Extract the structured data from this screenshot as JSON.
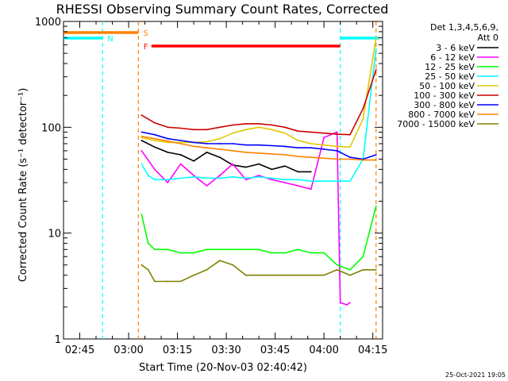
{
  "chart_data": {
    "type": "line",
    "title": "RHESSI Observing Summary Count Rates, Corrected",
    "xlabel": "Start Time (20-Nov-03 02:40:42)",
    "ylabel": "Corrected Count Rate (s⁻¹ detector⁻¹)",
    "y_scale": "log",
    "ylim": [
      1,
      1000
    ],
    "xlim": [
      "02:40",
      "04:18"
    ],
    "x_ticks": [
      "02:45",
      "03:00",
      "03:15",
      "03:30",
      "03:45",
      "04:00",
      "04:15"
    ],
    "y_ticks": [
      "1",
      "10",
      "100",
      "1000"
    ],
    "legend_header": [
      "Det 1,3,4,5,6,9,",
      "Att 0"
    ],
    "timestamp": "25-Oct-2021 19:05",
    "flags": [
      {
        "label": "S",
        "color": "#ff8000",
        "start": "02:40",
        "end": "03:03"
      },
      {
        "label": "N",
        "color": "#00ffff",
        "start": "02:40",
        "end": "02:52"
      },
      {
        "label": "N",
        "color": "#00ffff",
        "start": "04:05",
        "end": "04:17"
      },
      {
        "label": "F",
        "color": "#ff0000",
        "start": "03:07",
        "end": "04:05"
      }
    ],
    "vlines": [
      {
        "t": "02:52",
        "color": "#00ffff"
      },
      {
        "t": "03:03",
        "color": "#ff8000"
      },
      {
        "t": "04:05",
        "color": "#00ffff"
      },
      {
        "t": "04:16",
        "color": "#ff8000"
      }
    ],
    "series": [
      {
        "name": "3 - 6 keV",
        "color": "#000000",
        "x": [
          "03:04",
          "03:08",
          "03:12",
          "03:16",
          "03:20",
          "03:24",
          "03:28",
          "03:32",
          "03:36",
          "03:40",
          "03:44",
          "03:48",
          "03:52",
          "03:56"
        ],
        "y": [
          75,
          65,
          58,
          55,
          48,
          58,
          52,
          44,
          42,
          45,
          40,
          43,
          38,
          38
        ]
      },
      {
        "name": "6 - 12 keV",
        "color": "#ff00ff",
        "x": [
          "03:04",
          "03:08",
          "03:12",
          "03:16",
          "03:20",
          "03:24",
          "03:28",
          "03:32",
          "03:36",
          "03:40",
          "03:44",
          "03:48",
          "03:52",
          "03:56",
          "04:00",
          "04:04",
          "04:05",
          "04:07",
          "04:08"
        ],
        "y": [
          60,
          40,
          30,
          45,
          35,
          28,
          35,
          45,
          32,
          35,
          32,
          30,
          28,
          26,
          80,
          90,
          2.2,
          2.1,
          2.2
        ]
      },
      {
        "name": "12 - 25 keV",
        "color": "#00ff00",
        "x": [
          "03:04",
          "03:06",
          "03:08",
          "03:12",
          "03:16",
          "03:20",
          "03:24",
          "03:28",
          "03:32",
          "03:36",
          "03:40",
          "03:44",
          "03:48",
          "03:52",
          "03:56",
          "04:00",
          "04:04",
          "04:08",
          "04:12",
          "04:16"
        ],
        "y": [
          15,
          8,
          7,
          7,
          6.5,
          6.5,
          7,
          7,
          7,
          7,
          7,
          6.5,
          6.5,
          7,
          6.5,
          6.5,
          5,
          4.5,
          6,
          18
        ]
      },
      {
        "name": "25 - 50 keV",
        "color": "#00ffff",
        "x": [
          "03:04",
          "03:06",
          "03:08",
          "03:12",
          "03:16",
          "03:20",
          "03:24",
          "03:28",
          "03:32",
          "03:36",
          "03:40",
          "03:44",
          "03:48",
          "03:52",
          "03:56",
          "04:00",
          "04:04",
          "04:08",
          "04:12",
          "04:16"
        ],
        "y": [
          45,
          35,
          32,
          32,
          33,
          34,
          33,
          33,
          34,
          33,
          34,
          33,
          32,
          32,
          31,
          31,
          31,
          31,
          50,
          550
        ]
      },
      {
        "name": "50 - 100 keV",
        "color": "#e0c800",
        "x": [
          "03:04",
          "03:08",
          "03:12",
          "03:16",
          "03:20",
          "03:24",
          "03:28",
          "03:32",
          "03:36",
          "03:40",
          "03:44",
          "03:48",
          "03:52",
          "03:56",
          "04:00",
          "04:04",
          "04:08",
          "04:12",
          "04:16"
        ],
        "y": [
          80,
          75,
          72,
          72,
          72,
          73,
          78,
          88,
          95,
          100,
          95,
          88,
          75,
          70,
          68,
          66,
          65,
          120,
          700
        ]
      },
      {
        "name": "100 - 300 keV",
        "color": "#cc0000",
        "x": [
          "03:04",
          "03:08",
          "03:12",
          "03:16",
          "03:20",
          "03:24",
          "03:28",
          "03:32",
          "03:36",
          "03:40",
          "03:44",
          "03:48",
          "03:52",
          "03:56",
          "04:00",
          "04:04",
          "04:08",
          "04:12",
          "04:16"
        ],
        "y": [
          130,
          110,
          100,
          98,
          95,
          95,
          100,
          105,
          108,
          108,
          105,
          100,
          92,
          90,
          88,
          86,
          85,
          150,
          350
        ]
      },
      {
        "name": "300 - 800 keV",
        "color": "#0000ff",
        "x": [
          "03:04",
          "03:08",
          "03:12",
          "03:16",
          "03:20",
          "03:24",
          "03:28",
          "03:32",
          "03:36",
          "03:40",
          "03:44",
          "03:48",
          "03:52",
          "03:56",
          "04:00",
          "04:04",
          "04:08",
          "04:12",
          "04:16"
        ],
        "y": [
          90,
          85,
          78,
          75,
          72,
          70,
          70,
          70,
          68,
          68,
          67,
          66,
          64,
          64,
          62,
          60,
          52,
          50,
          55
        ]
      },
      {
        "name": "800 - 7000 keV",
        "color": "#ff8000",
        "x": [
          "03:04",
          "03:08",
          "03:12",
          "03:16",
          "03:20",
          "03:24",
          "03:28",
          "03:32",
          "03:36",
          "03:40",
          "03:44",
          "03:48",
          "03:52",
          "03:56",
          "04:00",
          "04:04",
          "04:08",
          "04:12",
          "04:16"
        ],
        "y": [
          82,
          78,
          74,
          70,
          66,
          64,
          62,
          60,
          58,
          57,
          56,
          55,
          53,
          52,
          51,
          50,
          50,
          49,
          49
        ]
      },
      {
        "name": "7000 - 15000 keV",
        "color": "#808000",
        "x": [
          "03:04",
          "03:06",
          "03:08",
          "03:12",
          "03:16",
          "03:20",
          "03:24",
          "03:28",
          "03:32",
          "03:36",
          "03:40",
          "03:44",
          "03:48",
          "03:52",
          "03:56",
          "04:00",
          "04:04",
          "04:08",
          "04:12",
          "04:16"
        ],
        "y": [
          5,
          4.5,
          3.5,
          3.5,
          3.5,
          4,
          4.5,
          5.5,
          5,
          4,
          4,
          4,
          4,
          4,
          4,
          4,
          4.5,
          4,
          4.5,
          4.5
        ]
      }
    ]
  }
}
